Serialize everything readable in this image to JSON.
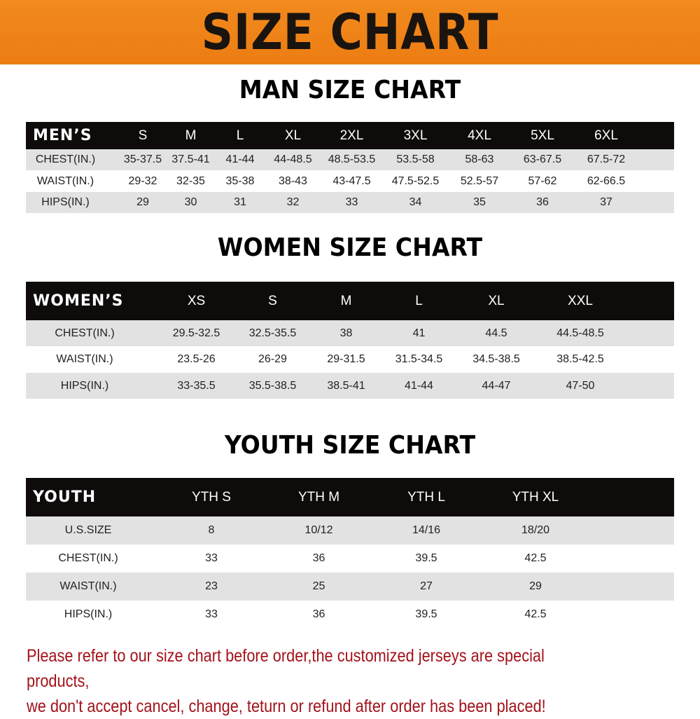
{
  "title": "SIZE CHART",
  "men": {
    "title": "MAN SIZE CHART",
    "header": [
      "MEN’S",
      "S",
      "M",
      "L",
      "XL",
      "2XL",
      "3XL",
      "4XL",
      "5XL",
      "6XL"
    ],
    "rows": [
      [
        "CHEST(IN.)",
        "35-37.5",
        "37.5-41",
        "41-44",
        "44-48.5",
        "48.5-53.5",
        "53.5-58",
        "58-63",
        "63-67.5",
        "67.5-72"
      ],
      [
        "WAIST(IN.)",
        "29-32",
        "32-35",
        "35-38",
        "38-43",
        "43-47.5",
        "47.5-52.5",
        "52.5-57",
        "57-62",
        "62-66.5"
      ],
      [
        "HIPS(IN.)",
        "29",
        "30",
        "31",
        "32",
        "33",
        "34",
        "35",
        "36",
        "37"
      ]
    ]
  },
  "women": {
    "title": "WOMEN SIZE CHART",
    "header": [
      "WOMEN’S",
      "XS",
      "S",
      "M",
      "L",
      "XL",
      "XXL"
    ],
    "rows": [
      [
        "CHEST(IN.)",
        "29.5-32.5",
        "32.5-35.5",
        "38",
        "41",
        "44.5",
        "44.5-48.5"
      ],
      [
        "WAIST(IN.)",
        "23.5-26",
        "26-29",
        "29-31.5",
        "31.5-34.5",
        "34.5-38.5",
        "38.5-42.5"
      ],
      [
        "HIPS(IN.)",
        "33-35.5",
        "35.5-38.5",
        "38.5-41",
        "41-44",
        "44-47",
        "47-50"
      ]
    ]
  },
  "youth": {
    "title": "YOUTH SIZE CHART",
    "header": [
      "YOUTH",
      "YTH S",
      "YTH M",
      "YTH L",
      "YTH XL"
    ],
    "rows": [
      [
        "U.S.SIZE",
        "8",
        "10/12",
        "14/16",
        "18/20"
      ],
      [
        "CHEST(IN.)",
        "33",
        "36",
        "39.5",
        "42.5"
      ],
      [
        "WAIST(IN.)",
        "23",
        "25",
        "27",
        "29"
      ],
      [
        "HIPS(IN.)",
        "33",
        "36",
        "39.5",
        "42.5"
      ]
    ]
  },
  "note": [
    "Please refer to our size chart before order,the customized jerseys are special products,",
    "we don't accept cancel, change, teturn or refund after order has been placed!"
  ],
  "colors": {
    "banner": "#ef8318",
    "header_row": "#0e0b0a",
    "stripe": "#e2e2e2",
    "note": "#a3121a"
  }
}
